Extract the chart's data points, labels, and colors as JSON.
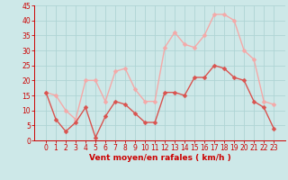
{
  "hours": [
    0,
    1,
    2,
    3,
    4,
    5,
    6,
    7,
    8,
    9,
    10,
    11,
    12,
    13,
    14,
    15,
    16,
    17,
    18,
    19,
    20,
    21,
    22,
    23
  ],
  "wind_avg": [
    16,
    7,
    3,
    6,
    11,
    1,
    8,
    13,
    12,
    9,
    6,
    6,
    16,
    16,
    15,
    21,
    21,
    25,
    24,
    21,
    20,
    13,
    11,
    4
  ],
  "wind_gust": [
    16,
    15,
    10,
    7,
    20,
    20,
    13,
    23,
    24,
    17,
    13,
    13,
    31,
    36,
    32,
    31,
    35,
    42,
    42,
    40,
    30,
    27,
    13,
    12
  ],
  "color_avg": "#d9534f",
  "color_gust": "#f4a9a8",
  "bg_color": "#cde8e8",
  "grid_color": "#aed4d4",
  "xlabel": "Vent moyen/en rafales ( km/h )",
  "xlabel_color": "#cc0000",
  "tick_color": "#cc0000",
  "ylim": [
    0,
    45
  ],
  "yticks": [
    0,
    5,
    10,
    15,
    20,
    25,
    30,
    35,
    40,
    45
  ],
  "xticks": [
    0,
    1,
    2,
    3,
    4,
    5,
    6,
    7,
    8,
    9,
    10,
    11,
    12,
    13,
    14,
    15,
    16,
    17,
    18,
    19,
    20,
    21,
    22,
    23
  ],
  "markersize": 2.5,
  "linewidth": 1.0
}
